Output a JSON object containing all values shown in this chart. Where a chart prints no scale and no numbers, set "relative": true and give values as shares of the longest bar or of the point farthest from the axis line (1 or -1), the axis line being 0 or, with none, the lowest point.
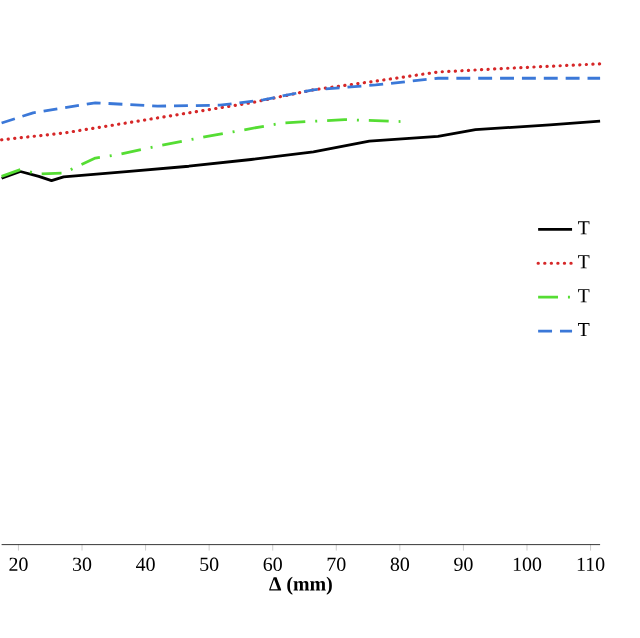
{
  "chart_data": {
    "type": "line",
    "relative": true,
    "xlabel": "**Δ (mm)**",
    "xlim": [
      17.35,
      111.5
    ],
    "xticks": [
      20,
      30,
      40,
      50,
      60,
      70,
      80,
      90,
      100,
      110
    ],
    "legend": "right",
    "marker": "none",
    "grid": false,
    "series": [
      {
        "name": "T",
        "color": "#000000",
        "line_style": "solid",
        "x": [
          17.35,
          20.3,
          23.2,
          25.2,
          27.1,
          37.0,
          46.8,
          56.6,
          66.4,
          75.2,
          86.0,
          91.9,
          103.6,
          111.5
        ],
        "values": [
          0.762,
          0.776,
          0.766,
          0.757,
          0.765,
          0.776,
          0.787,
          0.801,
          0.817,
          0.839,
          0.849,
          0.863,
          0.873,
          0.881
        ]
      },
      {
        "name": "T",
        "color": "#d62728",
        "line_style": "dotted",
        "x": [
          17.35,
          27.1,
          37.0,
          46.8,
          56.6,
          66.4,
          76.2,
          86.0,
          95.8,
          111.5
        ],
        "values": [
          0.842,
          0.856,
          0.877,
          0.898,
          0.919,
          0.946,
          0.964,
          0.983,
          0.99,
          1.0
        ]
      },
      {
        "name": "T",
        "color": "#55dd33",
        "line_style": "dashdot",
        "x": [
          17.35,
          20.3,
          23.2,
          27.1,
          32.1,
          36.0,
          41.9,
          49.7,
          61.5,
          71.3,
          80.1
        ],
        "values": [
          0.766,
          0.78,
          0.771,
          0.773,
          0.804,
          0.812,
          0.829,
          0.849,
          0.877,
          0.884,
          0.88
        ]
      },
      {
        "name": "T",
        "color": "#3b78d8",
        "line_style": "dashed",
        "x": [
          17.35,
          22.3,
          32.1,
          41.9,
          51.7,
          58.5,
          66.4,
          76.2,
          86.0,
          95.8,
          111.5
        ],
        "values": [
          0.877,
          0.898,
          0.919,
          0.912,
          0.914,
          0.925,
          0.946,
          0.956,
          0.97,
          0.97,
          0.97
        ]
      }
    ]
  }
}
